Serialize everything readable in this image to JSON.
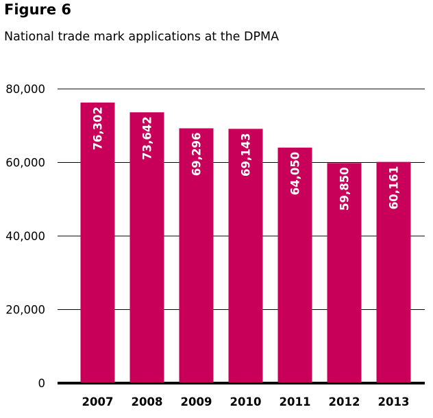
{
  "figure_label": "Figure 6",
  "chart_data": {
    "type": "bar",
    "title": "National trade mark applications at the DPMA",
    "categories": [
      "2007",
      "2008",
      "2009",
      "2010",
      "2011",
      "2012",
      "2013"
    ],
    "values": [
      76302,
      73642,
      69296,
      69143,
      64050,
      59850,
      60161
    ],
    "value_labels": [
      "76,302",
      "73,642",
      "69,296",
      "69,143",
      "64,050",
      "59,850",
      "60,161"
    ],
    "ylim": [
      0,
      80000
    ],
    "yticks": [
      0,
      20000,
      40000,
      60000,
      80000
    ],
    "ytick_labels": [
      "0",
      "20,000",
      "40,000",
      "60,000",
      "80,000"
    ],
    "xlabel": "",
    "ylabel": "",
    "grid": true,
    "bar_color": "#c8005a",
    "gridline_color": "#000000"
  }
}
